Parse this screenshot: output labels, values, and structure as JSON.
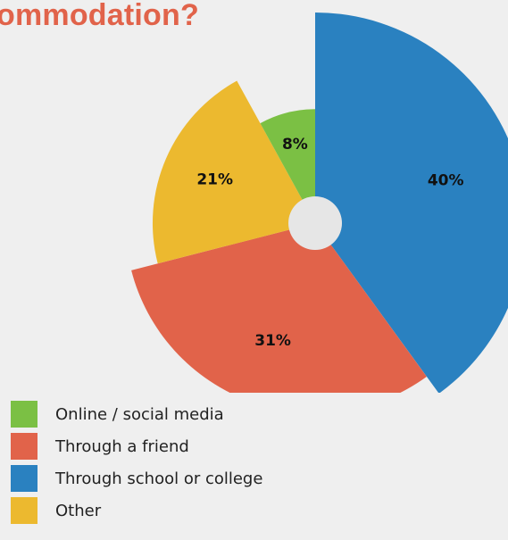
{
  "title": "ommodation?",
  "chart_data": {
    "type": "pie",
    "variant": "exploded-radial",
    "slices": [
      {
        "label": "Through school or college",
        "value": 40,
        "value_label": "40%",
        "color": "#2a81c0"
      },
      {
        "label": "Through a friend",
        "value": 31,
        "value_label": "31%",
        "color": "#e1634a"
      },
      {
        "label": "Other",
        "value": 21,
        "value_label": "21%",
        "color": "#ecb92f"
      },
      {
        "label": "Online / social media",
        "value": 8,
        "value_label": "8%",
        "color": "#7bc044"
      }
    ],
    "legend": [
      {
        "label": "Online / social media",
        "color": "#7bc044"
      },
      {
        "label": "Through a friend",
        "color": "#e1634a"
      },
      {
        "label": "Through school or college",
        "color": "#2a81c0"
      },
      {
        "label": "Other",
        "color": "#ecb92f"
      }
    ],
    "legend_position": "bottom-left",
    "center_hole_color": "#e6e6e6"
  }
}
